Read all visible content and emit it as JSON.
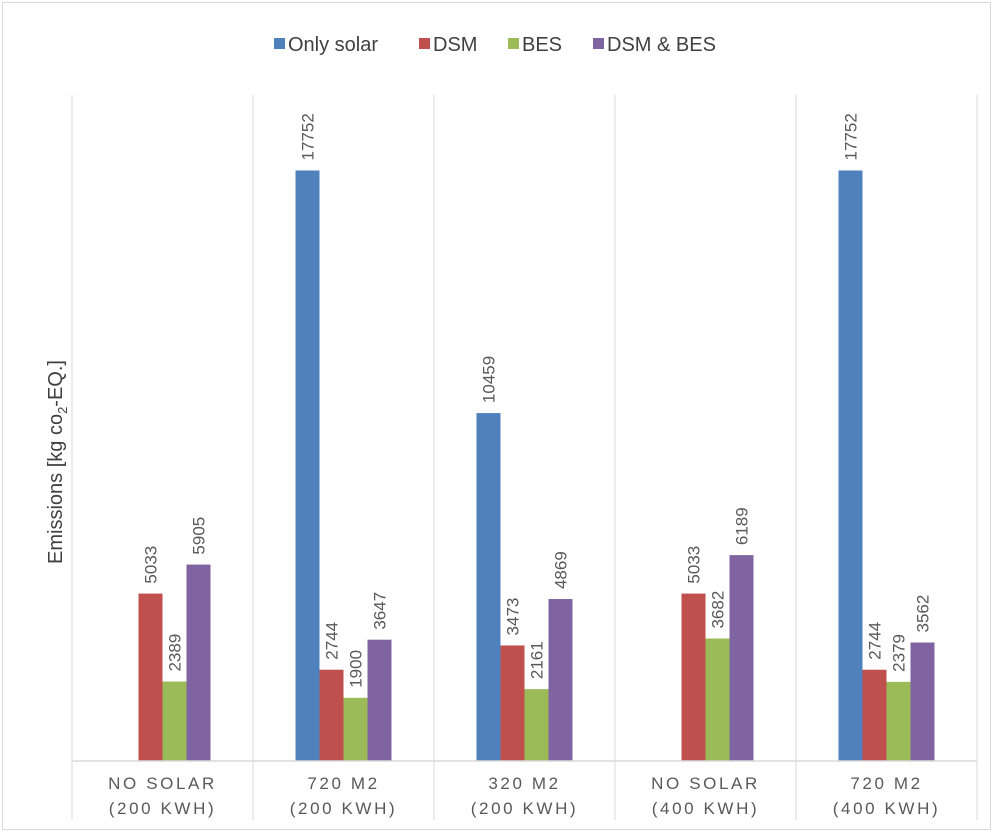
{
  "chart_data": {
    "type": "bar",
    "title": "",
    "ylabel_main": "Emissions [kg co",
    "ylabel_sub": "2",
    "ylabel_tail": "-EQ.]",
    "xlabel": "",
    "ylim": [
      0,
      20000
    ],
    "categories": [
      [
        "NO SOLAR",
        "(200 KWH)"
      ],
      [
        "720 M2",
        "(200 KWH)"
      ],
      [
        "320 M2",
        "(200 KWH)"
      ],
      [
        "NO SOLAR",
        "(400 KWH)"
      ],
      [
        "720 M2",
        "(400 KWH)"
      ]
    ],
    "series": [
      {
        "name": "Only solar",
        "color": "#4f81bd",
        "values": [
          null,
          17752,
          10459,
          null,
          17752
        ]
      },
      {
        "name": "DSM",
        "color": "#c0504d",
        "values": [
          5033,
          2744,
          3473,
          5033,
          2744
        ]
      },
      {
        "name": "BES",
        "color": "#9bbb59",
        "values": [
          2389,
          1900,
          2161,
          3682,
          2379
        ]
      },
      {
        "name": "DSM & BES",
        "color": "#8064a2",
        "values": [
          5905,
          3647,
          4869,
          6189,
          3562
        ]
      }
    ],
    "legend_position": "top",
    "grid": false
  }
}
